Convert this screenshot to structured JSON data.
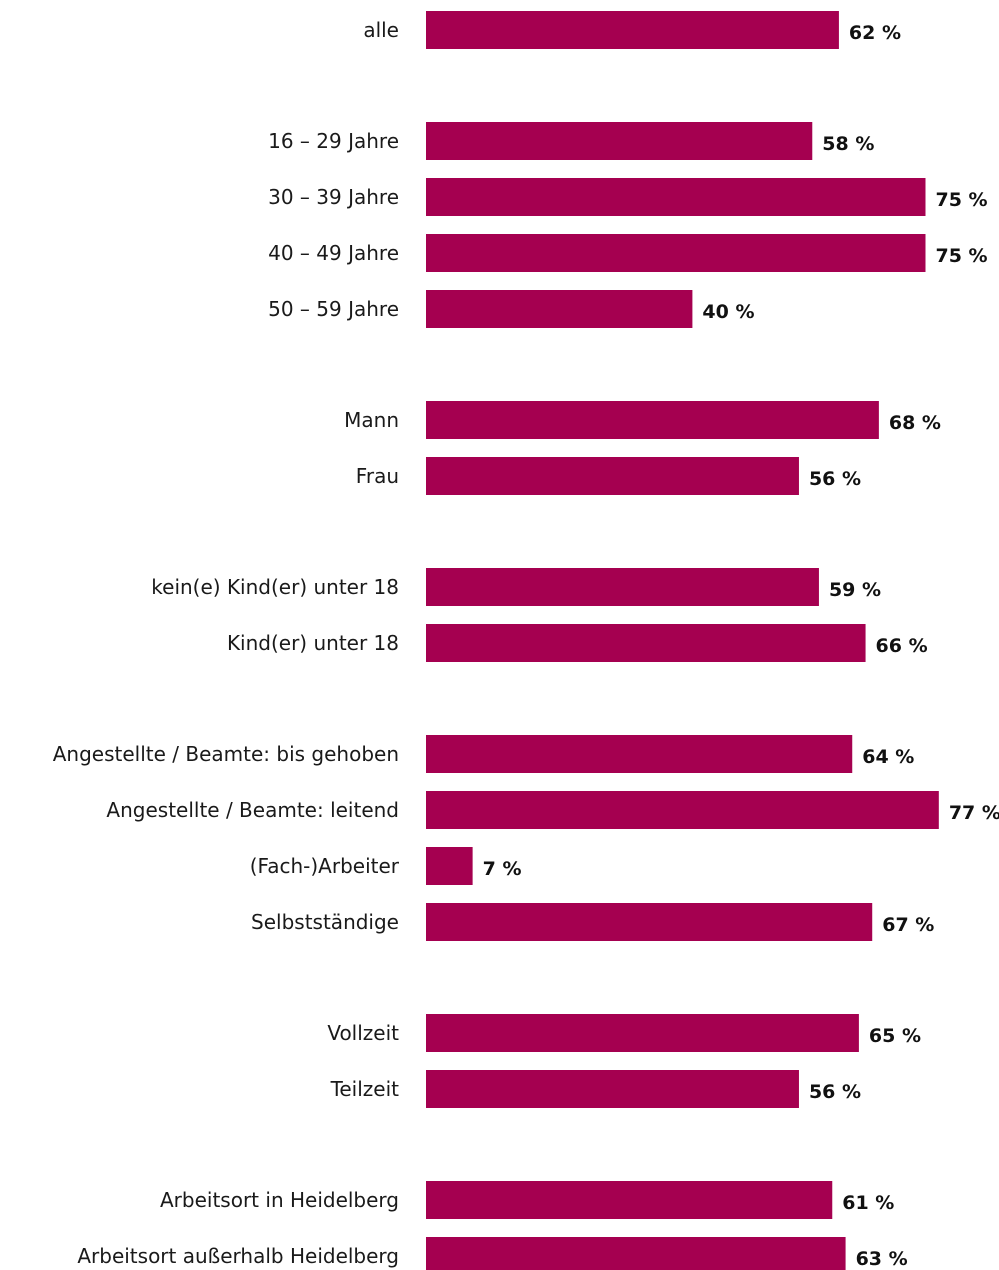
{
  "chart_data": {
    "type": "bar",
    "orientation": "horizontal",
    "bar_color": "#A50050",
    "value_suffix": " %",
    "grid": false,
    "legend": "none",
    "xlim": [
      0,
      80
    ],
    "categories": [
      "alle",
      "16 – 29 Jahre",
      "30 – 39 Jahre",
      "40 – 49 Jahre",
      "50 – 59 Jahre",
      "Mann",
      "Frau",
      "kein(e) Kind(er) unter 18",
      "Kind(er) unter 18",
      "Angestellte / Beamte: bis gehoben",
      "Angestellte / Beamte: leitend",
      "(Fach-)Arbeiter",
      "Selbstständige",
      "Vollzeit",
      "Teilzeit",
      "Arbeitsort in Heidelberg",
      "Arbeitsort außerhalb Heidelberg"
    ],
    "values": [
      62,
      58,
      75,
      75,
      40,
      68,
      56,
      59,
      66,
      64,
      77,
      7,
      67,
      65,
      56,
      61,
      63
    ],
    "groups": [
      [
        0
      ],
      [
        1,
        2,
        3,
        4
      ],
      [
        5,
        6
      ],
      [
        7,
        8
      ],
      [
        9,
        10,
        11,
        12
      ],
      [
        13,
        14
      ],
      [
        15,
        16
      ]
    ]
  }
}
